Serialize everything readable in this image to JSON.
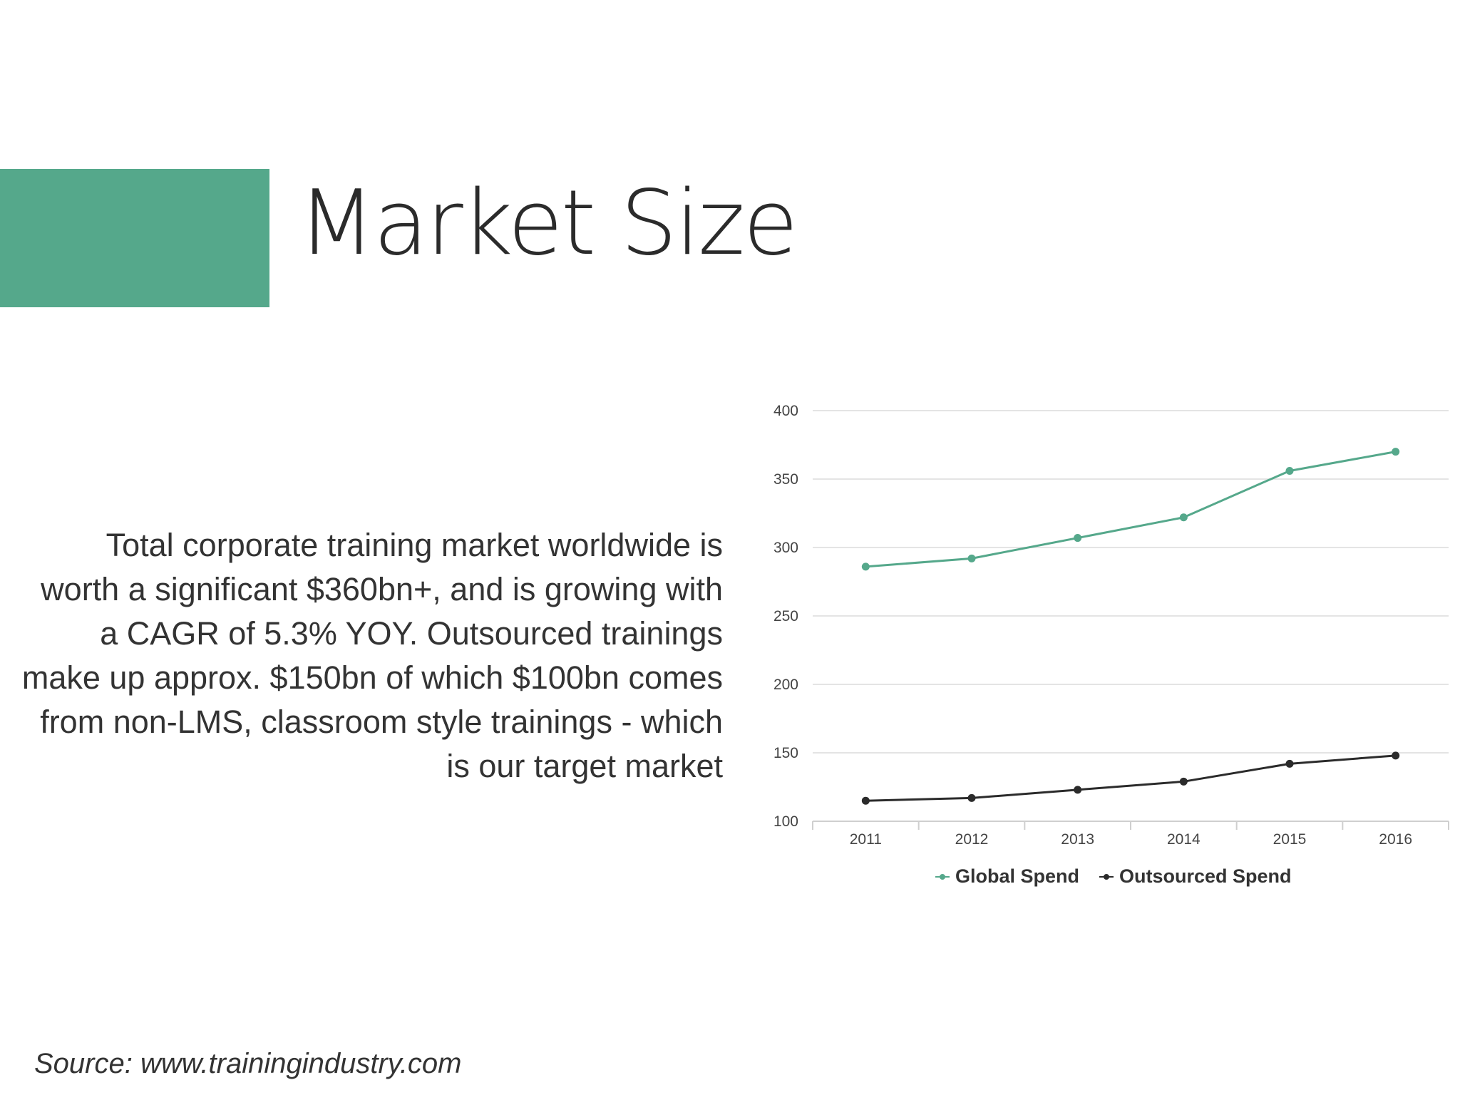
{
  "slide": {
    "title": "Market Size",
    "body": "Total corporate training market worldwide is worth a significant $360bn+, and is growing with a CAGR of 5.3% YOY. Outsourced trainings make up approx. $150bn of which $100bn comes from non-LMS, classroom style trainings - which is our target market",
    "source": "Source: www.trainingindustry.com",
    "accent_color": "#55a88b"
  },
  "chart_data": {
    "type": "line",
    "title": "",
    "xlabel": "",
    "ylabel": "",
    "categories": [
      "2011",
      "2012",
      "2013",
      "2014",
      "2015",
      "2016"
    ],
    "ylim": [
      100,
      400
    ],
    "yticks": [
      "100",
      "150",
      "200",
      "250",
      "300",
      "350",
      "400"
    ],
    "grid": true,
    "legend_position": "bottom",
    "series": [
      {
        "name": "Global Spend",
        "values": [
          286,
          292,
          307,
          322,
          356,
          370
        ],
        "color": "#55a88b"
      },
      {
        "name": "Outsourced Spend",
        "values": [
          115,
          117,
          123,
          129,
          142,
          148
        ],
        "color": "#2b2b2b"
      }
    ]
  }
}
